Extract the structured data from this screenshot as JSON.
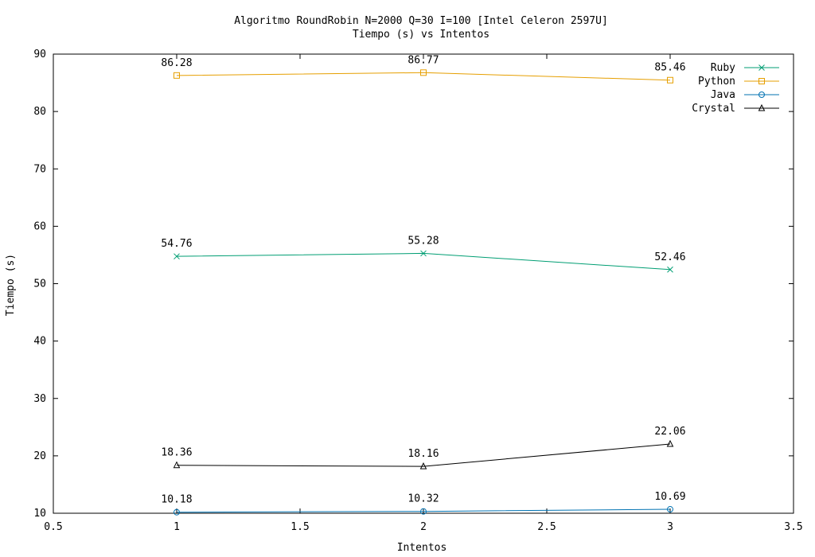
{
  "chart_data": {
    "type": "line",
    "title": "Algoritmo RoundRobin N=2000 Q=30 I=100 [Intel Celeron 2597U]",
    "subtitle": "Tiempo (s) vs Intentos",
    "xlabel": "Intentos",
    "ylabel": "Tiempo (s)",
    "xlim": [
      0.5,
      3.5
    ],
    "ylim": [
      10,
      90
    ],
    "xticks": [
      "0.5",
      "1",
      "1.5",
      "2",
      "2.5",
      "3",
      "3.5"
    ],
    "yticks": [
      "10",
      "20",
      "30",
      "40",
      "50",
      "60",
      "70",
      "80",
      "90"
    ],
    "x": [
      1,
      2,
      3
    ],
    "grid": false,
    "legend_position": "top-right",
    "series": [
      {
        "name": "Ruby",
        "color": "#009e73",
        "marker": "cross",
        "values": [
          54.76,
          55.28,
          52.46
        ],
        "labels": [
          "54.76",
          "55.28",
          "52.46"
        ]
      },
      {
        "name": "Python",
        "color": "#e69f00",
        "marker": "square",
        "values": [
          86.28,
          86.77,
          85.46
        ],
        "labels": [
          "86.28",
          "86.77",
          "85.46"
        ]
      },
      {
        "name": "Java",
        "color": "#0072b2",
        "marker": "circle",
        "values": [
          10.18,
          10.32,
          10.69
        ],
        "labels": [
          "10.18",
          "10.32",
          "10.69"
        ]
      },
      {
        "name": "Crystal",
        "color": "#000000",
        "marker": "triangle",
        "values": [
          18.36,
          18.16,
          22.06
        ],
        "labels": [
          "18.36",
          "18.16",
          "22.06"
        ]
      }
    ]
  }
}
